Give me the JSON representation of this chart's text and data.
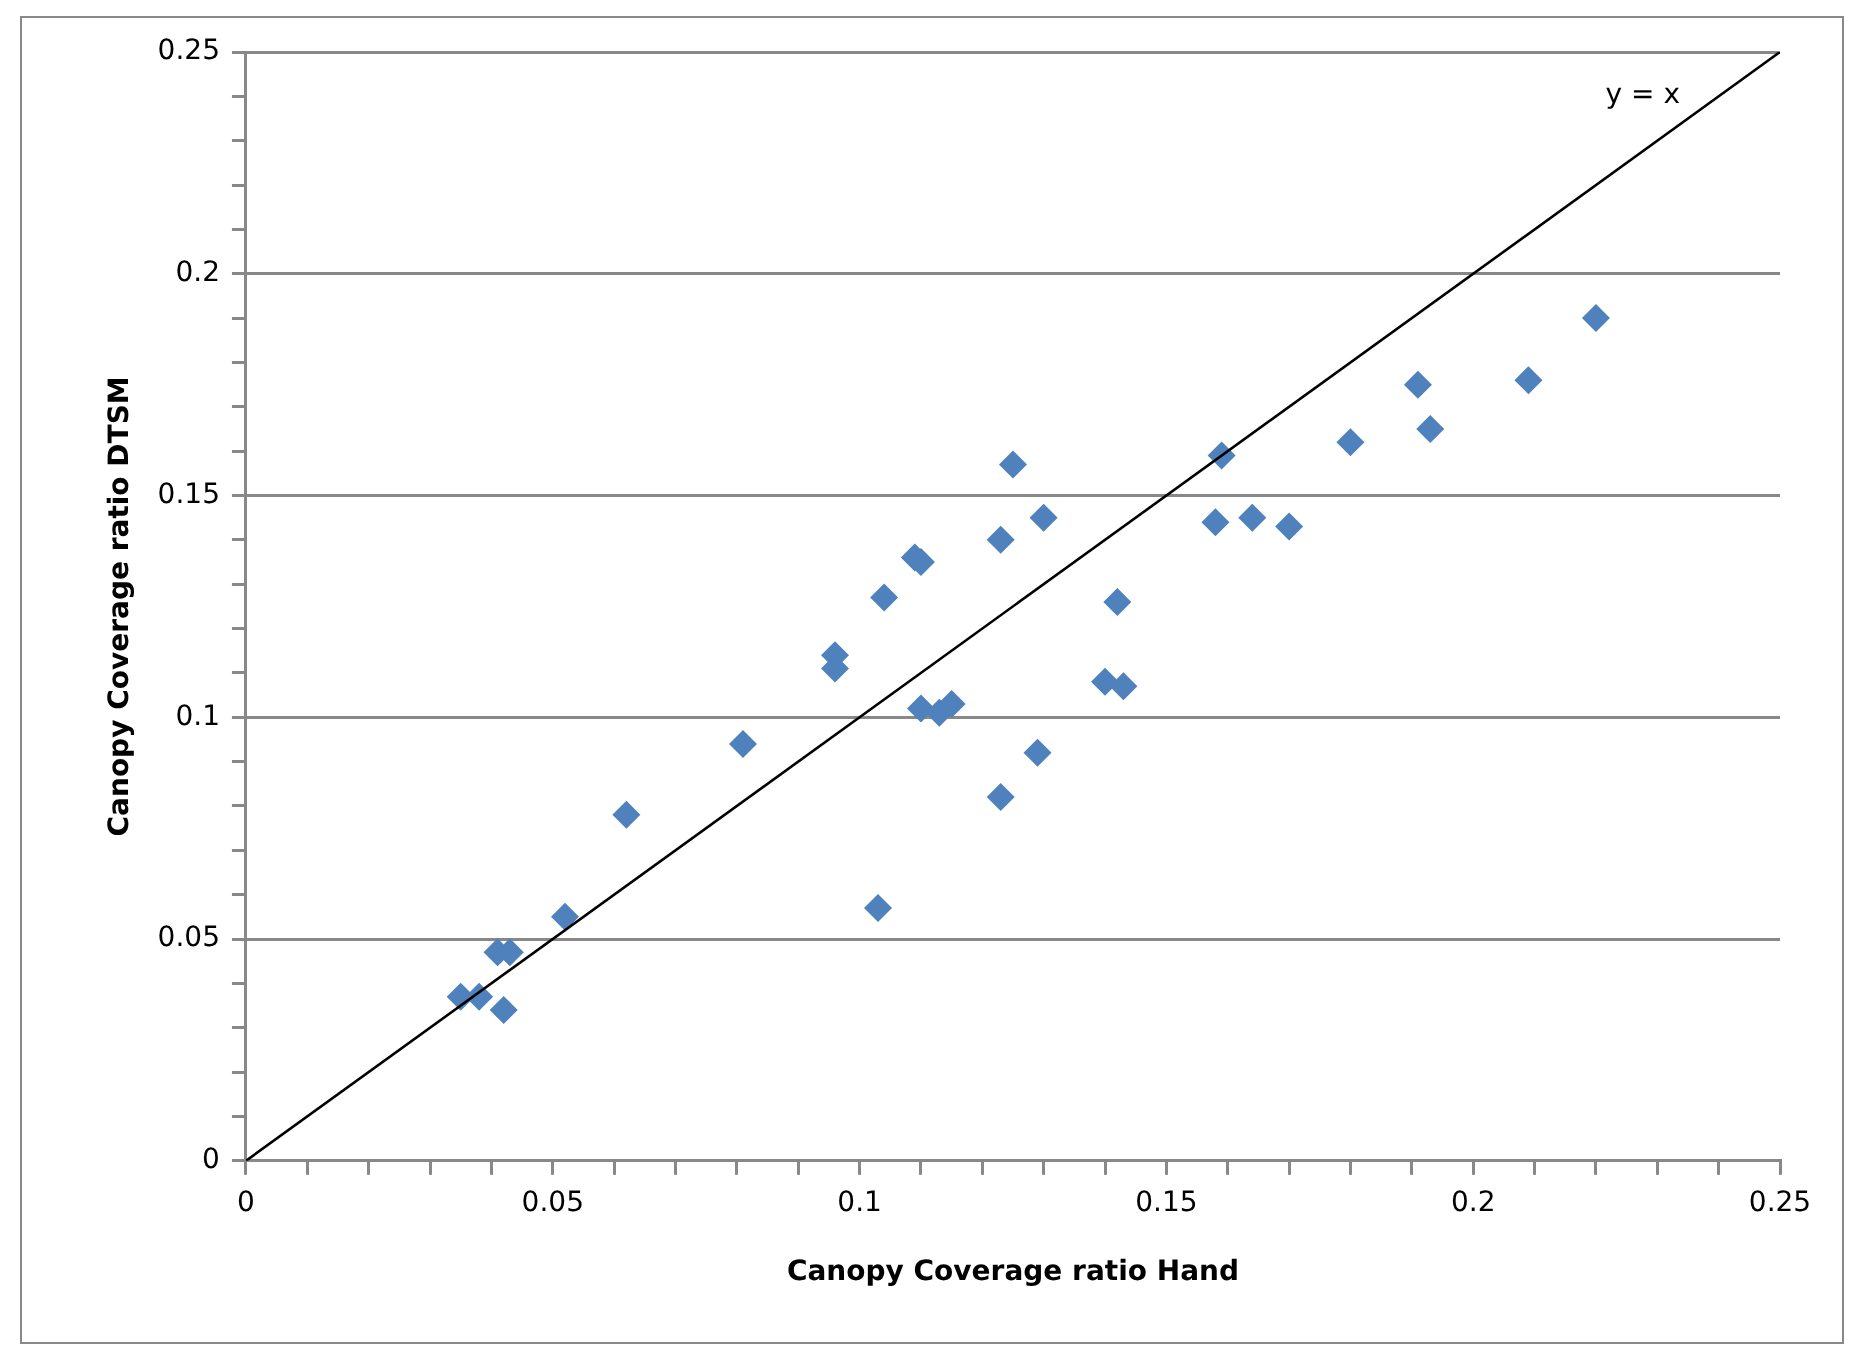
{
  "chart_data": {
    "type": "scatter",
    "xlabel": "Canopy Coverage ratio Hand",
    "ylabel": "Canopy Coverage ratio DTSM",
    "xlim": [
      0,
      0.25
    ],
    "ylim": [
      0,
      0.25
    ],
    "xticks": [
      0,
      {
        "value": 0.01,
        "label": null
      },
      {
        "value": 0.02,
        "label": null
      },
      {
        "value": 0.03,
        "label": null
      },
      {
        "value": 0.04,
        "label": null
      },
      0.05,
      {
        "value": 0.06,
        "label": null
      },
      {
        "value": 0.07,
        "label": null
      },
      {
        "value": 0.08,
        "label": null
      },
      {
        "value": 0.09,
        "label": null
      },
      0.1,
      {
        "value": 0.11,
        "label": null
      },
      {
        "value": 0.12,
        "label": null
      },
      {
        "value": 0.13,
        "label": null
      },
      {
        "value": 0.14,
        "label": null
      },
      0.15,
      {
        "value": 0.16,
        "label": null
      },
      {
        "value": 0.17,
        "label": null
      },
      {
        "value": 0.18,
        "label": null
      },
      {
        "value": 0.19,
        "label": null
      },
      0.2,
      {
        "value": 0.21,
        "label": null
      },
      {
        "value": 0.22,
        "label": null
      },
      {
        "value": 0.23,
        "label": null
      },
      {
        "value": 0.24,
        "label": null
      },
      0.25
    ],
    "yticks": [
      0,
      {
        "value": 0.01,
        "label": null
      },
      {
        "value": 0.02,
        "label": null
      },
      {
        "value": 0.03,
        "label": null
      },
      {
        "value": 0.04,
        "label": null
      },
      0.05,
      {
        "value": 0.06,
        "label": null
      },
      {
        "value": 0.07,
        "label": null
      },
      {
        "value": 0.08,
        "label": null
      },
      {
        "value": 0.09,
        "label": null
      },
      0.1,
      {
        "value": 0.11,
        "label": null
      },
      {
        "value": 0.12,
        "label": null
      },
      {
        "value": 0.13,
        "label": null
      },
      {
        "value": 0.14,
        "label": null
      },
      0.15,
      {
        "value": 0.16,
        "label": null
      },
      {
        "value": 0.17,
        "label": null
      },
      {
        "value": 0.18,
        "label": null
      },
      {
        "value": 0.19,
        "label": null
      },
      0.2,
      {
        "value": 0.21,
        "label": null
      },
      {
        "value": 0.22,
        "label": null
      },
      {
        "value": 0.23,
        "label": null
      },
      {
        "value": 0.24,
        "label": null
      },
      0.25
    ],
    "grid": "y",
    "legend": false,
    "annotations": [
      "y = x"
    ],
    "series": [
      {
        "color": "#4f81bd",
        "marker": "diamond",
        "x": [
          0.035,
          0.038,
          0.042,
          0.041,
          0.043,
          0.052,
          0.062,
          0.081,
          0.096,
          0.096,
          0.103,
          0.104,
          0.109,
          0.11,
          0.11,
          0.113,
          0.115,
          0.123,
          0.123,
          0.125,
          0.129,
          0.13,
          0.14,
          0.142,
          0.143,
          0.158,
          0.159,
          0.164,
          0.17,
          0.18,
          0.191,
          0.193,
          0.209,
          0.22
        ],
        "values": [
          0.037,
          0.037,
          0.034,
          0.047,
          0.047,
          0.055,
          0.078,
          0.094,
          0.114,
          0.111,
          0.057,
          0.127,
          0.136,
          0.135,
          0.102,
          0.101,
          0.103,
          0.082,
          0.14,
          0.157,
          0.092,
          0.145,
          0.108,
          0.126,
          0.107,
          0.144,
          0.159,
          0.145,
          0.143,
          0.162,
          0.175,
          0.165,
          0.176,
          0.19
        ]
      },
      {
        "type": "line",
        "color": "#000000",
        "marker": "none",
        "line_style": "solid",
        "x": [
          0,
          0.25
        ],
        "values": [
          0,
          0.25
        ]
      }
    ]
  }
}
